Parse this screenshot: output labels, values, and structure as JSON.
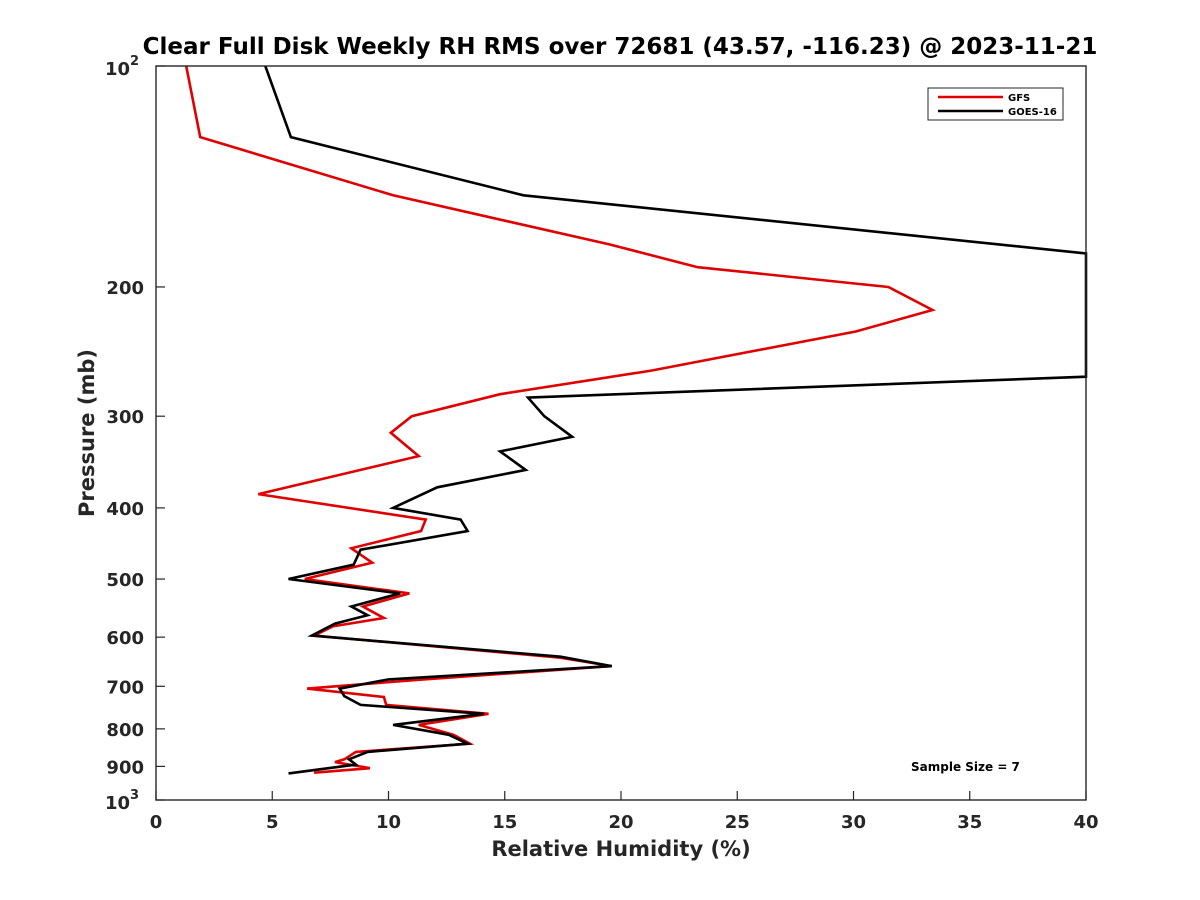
{
  "chart_data": {
    "type": "line",
    "title": "Clear Full Disk Weekly RH RMS over 72681 (43.57, -116.23) @ 2023-11-21",
    "xlabel": "Relative Humidity (%)",
    "ylabel": "Pressure (mb)",
    "xlim": [
      0,
      40
    ],
    "ylim": [
      100,
      1000
    ],
    "yscale": "log",
    "y_reversed": true,
    "grid": false,
    "legend_position": "top-right",
    "x_ticks": [
      "0",
      "5",
      "10",
      "15",
      "20",
      "25",
      "30",
      "35",
      "40"
    ],
    "y_ticks": [
      {
        "value": 100,
        "base": "10",
        "exp": "2"
      },
      {
        "value": 200,
        "label": "200"
      },
      {
        "value": 300,
        "label": "300"
      },
      {
        "value": 400,
        "label": "400"
      },
      {
        "value": 500,
        "label": "500"
      },
      {
        "value": 600,
        "label": "600"
      },
      {
        "value": 700,
        "label": "700"
      },
      {
        "value": 800,
        "label": "800"
      },
      {
        "value": 900,
        "label": "900"
      },
      {
        "value": 1000,
        "base": "10",
        "exp": "3"
      }
    ],
    "annotation": "Sample Size = 7",
    "series": [
      {
        "name": "GFS",
        "color": "#e00000",
        "points": [
          [
            1.3,
            100
          ],
          [
            1.9,
            125
          ],
          [
            10.2,
            150
          ],
          [
            19.5,
            175
          ],
          [
            23.3,
            188
          ],
          [
            31.5,
            200
          ],
          [
            33.4,
            215
          ],
          [
            30.1,
            230
          ],
          [
            21.3,
            260
          ],
          [
            14.8,
            280
          ],
          [
            11.0,
            300
          ],
          [
            10.1,
            316
          ],
          [
            11.3,
            340
          ],
          [
            4.4,
            383
          ],
          [
            11.6,
            415
          ],
          [
            11.4,
            430
          ],
          [
            8.4,
            454
          ],
          [
            9.3,
            475
          ],
          [
            6.4,
            500
          ],
          [
            10.9,
            523
          ],
          [
            8.9,
            545
          ],
          [
            9.8,
            565
          ],
          [
            7.6,
            580
          ],
          [
            6.8,
            597
          ],
          [
            17.4,
            640
          ],
          [
            19.6,
            657
          ],
          [
            11.5,
            685
          ],
          [
            6.5,
            705
          ],
          [
            9.8,
            724
          ],
          [
            9.9,
            742
          ],
          [
            14.3,
            763
          ],
          [
            11.3,
            790
          ],
          [
            12.8,
            815
          ],
          [
            13.5,
            838
          ],
          [
            8.6,
            860
          ],
          [
            8.1,
            880
          ],
          [
            7.7,
            888
          ],
          [
            9.2,
            905
          ],
          [
            6.8,
            918
          ]
        ]
      },
      {
        "name": "GOES-16",
        "color": "#000000",
        "points": [
          [
            4.7,
            100
          ],
          [
            5.8,
            125
          ],
          [
            15.8,
            150
          ],
          [
            40.0,
            180
          ],
          [
            40.0,
            265
          ],
          [
            16.0,
            283
          ],
          [
            16.7,
            300
          ],
          [
            17.9,
            320
          ],
          [
            14.8,
            335
          ],
          [
            15.9,
            355
          ],
          [
            12.1,
            375
          ],
          [
            10.2,
            400
          ],
          [
            13.1,
            415
          ],
          [
            13.4,
            430
          ],
          [
            8.8,
            456
          ],
          [
            8.5,
            478
          ],
          [
            5.7,
            500
          ],
          [
            10.5,
            523
          ],
          [
            8.4,
            545
          ],
          [
            9.1,
            560
          ],
          [
            7.7,
            575
          ],
          [
            6.7,
            597
          ],
          [
            17.4,
            638
          ],
          [
            19.6,
            657
          ],
          [
            10.0,
            685
          ],
          [
            7.9,
            705
          ],
          [
            8.1,
            722
          ],
          [
            8.8,
            742
          ],
          [
            14.1,
            763
          ],
          [
            10.2,
            790
          ],
          [
            12.6,
            815
          ],
          [
            13.4,
            838
          ],
          [
            9.1,
            860
          ],
          [
            8.3,
            880
          ],
          [
            8.6,
            895
          ],
          [
            5.7,
            920
          ]
        ]
      }
    ]
  }
}
